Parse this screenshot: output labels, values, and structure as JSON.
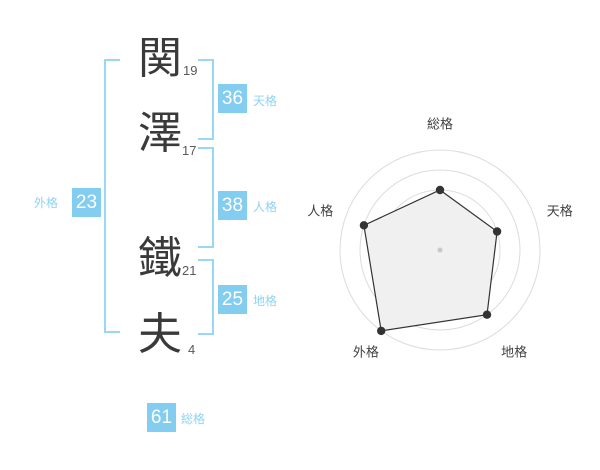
{
  "name_display": {
    "characters": [
      {
        "char": "関",
        "strokes": "19"
      },
      {
        "char": "澤",
        "strokes": "17"
      },
      {
        "char": "鐵",
        "strokes": "21"
      },
      {
        "char": "夫",
        "strokes": "4"
      }
    ]
  },
  "kaku_badges": [
    {
      "label": "天格",
      "value": "36"
    },
    {
      "label": "人格",
      "value": "38"
    },
    {
      "label": "地格",
      "value": "25"
    },
    {
      "label": "外格",
      "value": "23"
    },
    {
      "label": "総格",
      "value": "61"
    }
  ],
  "colors": {
    "accent": "#82CDF0",
    "bracket": "#9AD7F4",
    "chip_text": "#FFFFFF",
    "kanji": "#3A3A3A",
    "stroke_count": "#595959",
    "radar_label": "#404040",
    "radar_grid": "#DCDCDC",
    "radar_line": "#333333",
    "radar_fill": "#F0F0F0",
    "radar_center_dot": "#C9C9C9"
  },
  "chart_data": {
    "type": "radar",
    "title": "",
    "categories": [
      "総格",
      "天格",
      "地格",
      "外格",
      "人格"
    ],
    "values": [
      60,
      60,
      80,
      100,
      80
    ],
    "max": 100,
    "ring_levels": [
      20,
      40,
      60,
      80,
      100
    ],
    "start_angle_deg": -90,
    "direction": "clockwise",
    "grid": "concentric-circles",
    "legend": false
  }
}
